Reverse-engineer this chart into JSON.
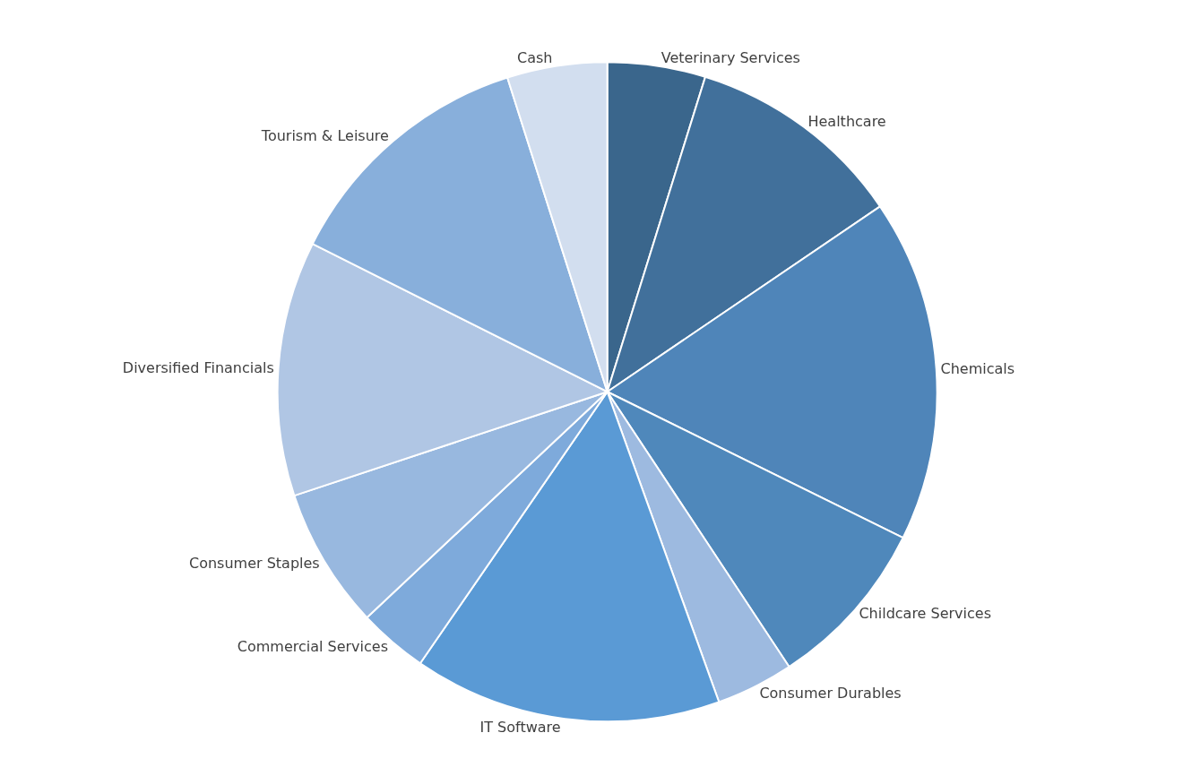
{
  "chart_data": {
    "type": "pie",
    "categories": [
      "Veterinary Services",
      "Healthcare",
      "Chemicals",
      "Childcare Services",
      "Consumer Durables",
      "IT Software",
      "Commercial Services",
      "Consumer Staples",
      "Diversified Financials",
      "Tourism & Leisure",
      "Cash"
    ],
    "values": [
      4.8,
      10.7,
      16.8,
      8.4,
      3.8,
      15.1,
      3.4,
      6.9,
      12.5,
      12.7,
      4.9
    ],
    "colors": [
      "#3a668c",
      "#41709b",
      "#4f85b9",
      "#4f88bb",
      "#9dbae0",
      "#5a9ad5",
      "#7eaadb",
      "#98b8df",
      "#b0c6e4",
      "#88afdb",
      "#d2deef"
    ],
    "legend": false
  }
}
